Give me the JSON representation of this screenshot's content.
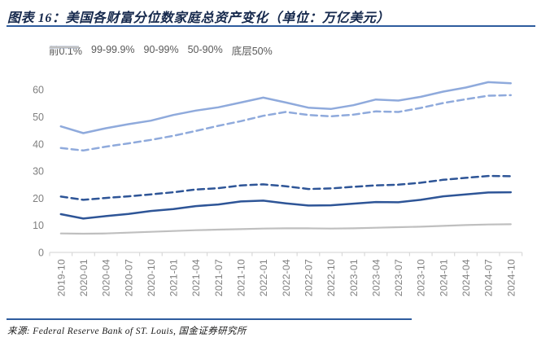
{
  "header": {
    "title": "图表 16：美国各财富分位数家庭总资产变化（单位：万亿美元）"
  },
  "footer": {
    "source": "来源: Federal Reserve Bank of ST. Louis, 国金证券研究所"
  },
  "colors": {
    "dark_blue": "#2e5597",
    "light_blue": "#8faadc",
    "gray_line": "#bfbfbf",
    "axis_line": "#d9d9d9",
    "axis_text": "#7f7f7f",
    "legend_text": "#595959",
    "rule_blue": "#2e5c9e"
  },
  "chart_data": {
    "type": "line",
    "title": "美国各财富分位数家庭总资产变化",
    "unit": "万亿美元",
    "xlabel": "",
    "ylabel": "",
    "ylim": [
      0,
      60
    ],
    "y_ticks": [
      0,
      10,
      20,
      30,
      40,
      50,
      60
    ],
    "grid": false,
    "legend_position": "top",
    "x": [
      "2019-10",
      "2020-01",
      "2020-04",
      "2020-07",
      "2020-10",
      "2021-01",
      "2021-04",
      "2021-07",
      "2021-10",
      "2022-01",
      "2022-04",
      "2022-07",
      "2022-10",
      "2023-01",
      "2023-04",
      "2023-07",
      "2023-10",
      "2024-01",
      "2024-04",
      "2024-07",
      "2024-10"
    ],
    "series": [
      {
        "name": "前0.1%",
        "color": "#2e5597",
        "dash": false,
        "values": [
          14.1,
          12.5,
          13.4,
          14.2,
          15.3,
          16.0,
          17.1,
          17.7,
          18.8,
          19.1,
          18.1,
          17.3,
          17.4,
          18.0,
          18.6,
          18.5,
          19.4,
          20.7,
          21.4,
          22.1,
          22.2
        ]
      },
      {
        "name": "99-99.9%",
        "color": "#2e5597",
        "dash": true,
        "values": [
          20.6,
          19.4,
          20.1,
          20.7,
          21.4,
          22.2,
          23.2,
          23.7,
          24.7,
          25.1,
          24.4,
          23.4,
          23.6,
          24.2,
          24.7,
          25.0,
          25.7,
          26.8,
          27.5,
          28.2,
          28.1
        ]
      },
      {
        "name": "90-99%",
        "color": "#8faadc",
        "dash": false,
        "values": [
          46.5,
          44.0,
          45.8,
          47.3,
          48.6,
          50.7,
          52.3,
          53.5,
          55.3,
          57.1,
          55.3,
          53.4,
          52.9,
          54.3,
          56.4,
          56.0,
          57.4,
          59.3,
          60.8,
          62.8,
          62.4
        ]
      },
      {
        "name": "50-90%",
        "color": "#8faadc",
        "dash": true,
        "values": [
          38.5,
          37.6,
          39.0,
          40.2,
          41.5,
          43.0,
          44.8,
          46.7,
          48.4,
          50.4,
          51.8,
          50.7,
          50.2,
          50.8,
          52.0,
          51.8,
          53.3,
          55.1,
          56.5,
          57.8,
          58.0
        ]
      },
      {
        "name": "底层50%",
        "color": "#bfbfbf",
        "dash": false,
        "values": [
          7.0,
          6.9,
          7.0,
          7.3,
          7.6,
          7.9,
          8.2,
          8.4,
          8.6,
          8.8,
          8.9,
          8.9,
          8.8,
          8.9,
          9.1,
          9.3,
          9.5,
          9.8,
          10.1,
          10.3,
          10.4
        ]
      }
    ]
  }
}
